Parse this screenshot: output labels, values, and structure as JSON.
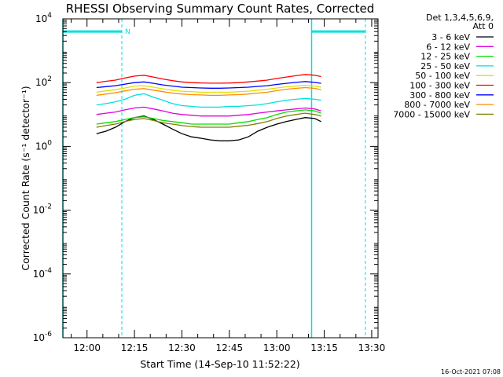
{
  "chart_data": {
    "type": "line",
    "title": "RHESSI Observing Summary Count Rates, Corrected",
    "xlabel": "Start Time (14-Sep-10 11:52:22)",
    "ylabel": "Corrected Count Rate (s⁻¹ detector⁻¹)",
    "y_scale": "log",
    "ylim": [
      1e-06,
      10000
    ],
    "xlim": [
      "11:52:22",
      "13:32"
    ],
    "x_ticks": [
      "12:00",
      "12:15",
      "12:30",
      "12:45",
      "13:00",
      "13:15",
      "13:30"
    ],
    "y_ticks": [
      {
        "base": "10",
        "exp": "4"
      },
      {
        "base": "10",
        "exp": "2"
      },
      {
        "base": "10",
        "exp": "0"
      },
      {
        "base": "10",
        "exp": "-2"
      },
      {
        "base": "10",
        "exp": "-4"
      },
      {
        "base": "10",
        "exp": "-6"
      }
    ],
    "legend_header": [
      "Det 1,3,4,5,6,9,",
      "Att 0"
    ],
    "legend_position": "right",
    "grid": false,
    "series": [
      {
        "name": "3 - 6 keV",
        "color": "#000000",
        "x": [
          "12:03",
          "12:06",
          "12:09",
          "12:12",
          "12:15",
          "12:18",
          "12:21",
          "12:24",
          "12:27",
          "12:30",
          "12:33",
          "12:36",
          "12:39",
          "12:42",
          "12:45",
          "12:48",
          "12:51",
          "12:54",
          "12:57",
          "13:00",
          "13:03",
          "13:06",
          "13:09",
          "13:12",
          "13:14"
        ],
        "values": [
          2.5,
          3,
          4,
          6,
          8,
          9,
          7,
          5,
          3.5,
          2.5,
          2,
          1.8,
          1.6,
          1.5,
          1.5,
          1.6,
          2,
          3,
          4,
          5,
          6,
          7,
          8,
          7.5,
          6
        ]
      },
      {
        "name": "6 - 12 keV",
        "color": "#e000e0",
        "x": [
          "12:03",
          "12:06",
          "12:09",
          "12:12",
          "12:15",
          "12:18",
          "12:21",
          "12:24",
          "12:27",
          "12:30",
          "12:33",
          "12:36",
          "12:39",
          "12:42",
          "12:45",
          "12:48",
          "12:51",
          "12:54",
          "12:57",
          "13:00",
          "13:03",
          "13:06",
          "13:09",
          "13:12",
          "13:14"
        ],
        "values": [
          10,
          11,
          12,
          14,
          16,
          17,
          15,
          13,
          11,
          10,
          9.5,
          9,
          9,
          9,
          9,
          9.5,
          10,
          11,
          12,
          13,
          14,
          15,
          16,
          15,
          13
        ]
      },
      {
        "name": "12 - 25 keV",
        "color": "#00e000",
        "x": [
          "12:03",
          "12:06",
          "12:09",
          "12:12",
          "12:15",
          "12:18",
          "12:21",
          "12:24",
          "12:27",
          "12:30",
          "12:33",
          "12:36",
          "12:39",
          "12:42",
          "12:45",
          "12:48",
          "12:51",
          "12:54",
          "12:57",
          "13:00",
          "13:03",
          "13:06",
          "13:09",
          "13:12",
          "13:14"
        ],
        "values": [
          5,
          5.5,
          6,
          7,
          8,
          8.5,
          7.5,
          6.5,
          6,
          5.5,
          5,
          5,
          5,
          5,
          5,
          5.5,
          6,
          7,
          8,
          10,
          12,
          13,
          14,
          13,
          11
        ]
      },
      {
        "name": "25 - 50 keV",
        "color": "#00e0e0",
        "x": [
          "12:03",
          "12:06",
          "12:09",
          "12:12",
          "12:15",
          "12:18",
          "12:21",
          "12:24",
          "12:27",
          "12:30",
          "12:33",
          "12:36",
          "12:39",
          "12:42",
          "12:45",
          "12:48",
          "12:51",
          "12:54",
          "12:57",
          "13:00",
          "13:03",
          "13:06",
          "13:09",
          "13:12",
          "13:14"
        ],
        "values": [
          20,
          22,
          25,
          30,
          40,
          45,
          35,
          28,
          22,
          19,
          18,
          17,
          17,
          17,
          18,
          18,
          19,
          20,
          22,
          25,
          28,
          30,
          32,
          30,
          28
        ]
      },
      {
        "name": "50 - 100 keV",
        "color": "#e0e000",
        "x": [
          "12:03",
          "12:06",
          "12:09",
          "12:12",
          "12:15",
          "12:18",
          "12:21",
          "12:24",
          "12:27",
          "12:30",
          "12:33",
          "12:36",
          "12:39",
          "12:42",
          "12:45",
          "12:48",
          "12:51",
          "12:54",
          "12:57",
          "13:00",
          "13:03",
          "13:06",
          "13:09",
          "13:12",
          "13:14"
        ],
        "values": [
          50,
          55,
          60,
          68,
          78,
          80,
          72,
          64,
          58,
          54,
          52,
          50,
          50,
          50,
          50,
          52,
          54,
          58,
          62,
          68,
          74,
          78,
          82,
          78,
          72
        ]
      },
      {
        "name": "100 - 300 keV",
        "color": "#ff0000",
        "x": [
          "12:03",
          "12:06",
          "12:09",
          "12:12",
          "12:15",
          "12:18",
          "12:21",
          "12:24",
          "12:27",
          "12:30",
          "12:33",
          "12:36",
          "12:39",
          "12:42",
          "12:45",
          "12:48",
          "12:51",
          "12:54",
          "12:57",
          "13:00",
          "13:03",
          "13:06",
          "13:09",
          "13:12",
          "13:14"
        ],
        "values": [
          100,
          110,
          120,
          140,
          160,
          170,
          150,
          130,
          115,
          105,
          100,
          98,
          96,
          96,
          97,
          100,
          105,
          112,
          120,
          135,
          150,
          165,
          180,
          170,
          155
        ]
      },
      {
        "name": "300 - 800 keV",
        "color": "#0000ff",
        "x": [
          "12:03",
          "12:06",
          "12:09",
          "12:12",
          "12:15",
          "12:18",
          "12:21",
          "12:24",
          "12:27",
          "12:30",
          "12:33",
          "12:36",
          "12:39",
          "12:42",
          "12:45",
          "12:48",
          "12:51",
          "12:54",
          "12:57",
          "13:00",
          "13:03",
          "13:06",
          "13:09",
          "13:12",
          "13:14"
        ],
        "values": [
          70,
          75,
          80,
          90,
          100,
          105,
          95,
          85,
          78,
          72,
          70,
          68,
          67,
          67,
          68,
          70,
          72,
          76,
          80,
          88,
          95,
          102,
          108,
          102,
          95
        ]
      },
      {
        "name": "800 - 7000 keV",
        "color": "#ff8c00",
        "x": [
          "12:03",
          "12:06",
          "12:09",
          "12:12",
          "12:15",
          "12:18",
          "12:21",
          "12:24",
          "12:27",
          "12:30",
          "12:33",
          "12:36",
          "12:39",
          "12:42",
          "12:45",
          "12:48",
          "12:51",
          "12:54",
          "12:57",
          "13:00",
          "13:03",
          "13:06",
          "13:09",
          "13:12",
          "13:14"
        ],
        "values": [
          40,
          44,
          48,
          55,
          62,
          65,
          58,
          52,
          47,
          44,
          42,
          41,
          40,
          40,
          41,
          42,
          44,
          47,
          50,
          56,
          62,
          66,
          70,
          66,
          60
        ]
      },
      {
        "name": "7000 - 15000 keV",
        "color": "#808000",
        "x": [
          "12:03",
          "12:06",
          "12:09",
          "12:12",
          "12:15",
          "12:18",
          "12:21",
          "12:24",
          "12:27",
          "12:30",
          "12:33",
          "12:36",
          "12:39",
          "12:42",
          "12:45",
          "12:48",
          "12:51",
          "12:54",
          "12:57",
          "13:00",
          "13:03",
          "13:06",
          "13:09",
          "13:12",
          "13:14"
        ],
        "values": [
          4,
          4.5,
          5,
          6,
          7,
          7.5,
          6.5,
          5.5,
          5,
          4.5,
          4.2,
          4,
          4,
          4,
          4,
          4.3,
          4.6,
          5.2,
          6,
          7.5,
          9,
          10,
          11,
          10,
          9
        ]
      }
    ],
    "attenuator_state_bars": {
      "color": "#00e0e0",
      "value": 4000,
      "intervals": [
        [
          "11:52:22",
          "12:11"
        ],
        [
          "13:11",
          "13:28"
        ]
      ],
      "marker_label": "N",
      "marker_time": "12:11"
    },
    "vertical_markers": {
      "color": "#00e0e0",
      "dashed": [
        "12:11",
        "13:28"
      ],
      "solid": [
        "11:52:22",
        "13:11"
      ]
    },
    "timestamp": "16-Oct-2021 07:08"
  }
}
